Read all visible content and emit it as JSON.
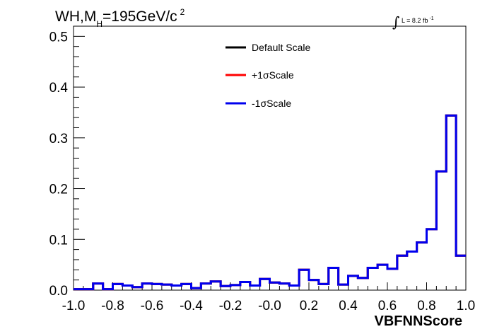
{
  "chart_data": {
    "type": "line",
    "title": {
      "main": "WH,M",
      "sub": "H",
      "rest": "=195GeV/c",
      "sup": "2"
    },
    "lumi": {
      "integral": "∫",
      "text": "L = 8.2 fb",
      "sup": "-1"
    },
    "xlabel": "VBFNNScore",
    "ylabel": "",
    "xlim": [
      -1.0,
      1.0
    ],
    "ylim": [
      0.0,
      0.52
    ],
    "x_ticks": [
      -1.0,
      -0.8,
      -0.6,
      -0.4,
      -0.2,
      0.0,
      0.2,
      0.4,
      0.6,
      0.8,
      1.0
    ],
    "x_tick_labels": [
      "-1.0",
      "-0.8",
      "-0.6",
      "-0.4",
      "-0.2",
      "-0.0",
      "0.2",
      "0.4",
      "0.6",
      "0.8",
      "1.0"
    ],
    "y_ticks": [
      0.0,
      0.1,
      0.2,
      0.3,
      0.4,
      0.5
    ],
    "y_tick_labels": [
      "0.0",
      "0.1",
      "0.2",
      "0.3",
      "0.4",
      "0.5"
    ],
    "legend_position": "top-center",
    "bin_edges_start": -1.0,
    "bin_width": 0.05,
    "series": [
      {
        "name": "Default Scale",
        "color": "#000000",
        "values": [
          0.002,
          0.002,
          0.013,
          0.002,
          0.012,
          0.009,
          0.006,
          0.013,
          0.012,
          0.011,
          0.009,
          0.012,
          0.004,
          0.013,
          0.017,
          0.008,
          0.01,
          0.016,
          0.009,
          0.022,
          0.015,
          0.013,
          0.009,
          0.04,
          0.02,
          0.012,
          0.044,
          0.011,
          0.028,
          0.024,
          0.044,
          0.05,
          0.042,
          0.068,
          0.076,
          0.094,
          0.12,
          0.234,
          0.344,
          0.068
        ]
      },
      {
        "name": "+1σScale",
        "color": "#ff0000",
        "values": [
          0.002,
          0.002,
          0.013,
          0.002,
          0.012,
          0.009,
          0.006,
          0.013,
          0.012,
          0.011,
          0.009,
          0.012,
          0.004,
          0.013,
          0.017,
          0.008,
          0.01,
          0.016,
          0.009,
          0.022,
          0.015,
          0.013,
          0.009,
          0.04,
          0.02,
          0.012,
          0.044,
          0.011,
          0.028,
          0.024,
          0.044,
          0.05,
          0.042,
          0.068,
          0.076,
          0.094,
          0.12,
          0.234,
          0.344,
          0.068
        ]
      },
      {
        "name": "-1σScale",
        "color": "#0000ee",
        "values": [
          0.002,
          0.002,
          0.013,
          0.002,
          0.012,
          0.009,
          0.006,
          0.013,
          0.012,
          0.011,
          0.009,
          0.012,
          0.004,
          0.013,
          0.017,
          0.008,
          0.01,
          0.016,
          0.009,
          0.022,
          0.015,
          0.013,
          0.009,
          0.04,
          0.02,
          0.012,
          0.044,
          0.011,
          0.028,
          0.024,
          0.044,
          0.05,
          0.042,
          0.068,
          0.076,
          0.094,
          0.12,
          0.234,
          0.344,
          0.068
        ]
      }
    ]
  }
}
